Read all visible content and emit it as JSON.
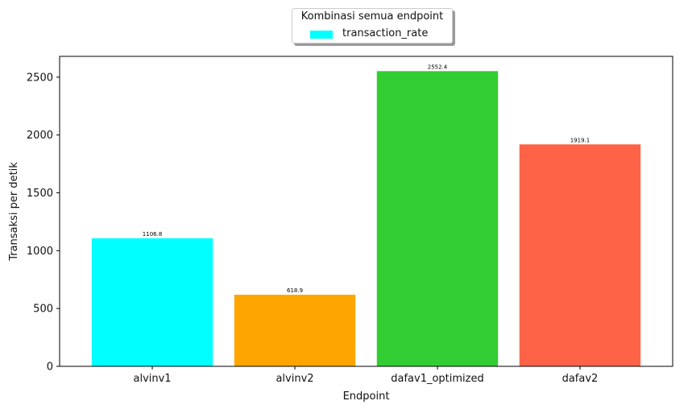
{
  "chart_data": {
    "type": "bar",
    "categories": [
      "alvinv1",
      "alvinv2",
      "dafav1_optimized",
      "dafav2"
    ],
    "values": [
      1106.8,
      618.9,
      2552.4,
      1919.1
    ],
    "data_labels": [
      "1106.8",
      "618.9",
      "2552.4",
      "1919.1"
    ],
    "colors": [
      "#00ffff",
      "#ffa500",
      "#32cd32",
      "#ff6347"
    ],
    "xlabel": "Endpoint",
    "ylabel": "Transaksi per detik",
    "ylim": [
      0,
      2680
    ],
    "yticks": [
      0,
      500,
      1000,
      1500,
      2000,
      2500
    ],
    "grid": false,
    "legend": {
      "title": "Kombinasi semua endpoint",
      "entries": [
        "transaction_rate"
      ],
      "placement": "top-center, above plot",
      "color": "#00ffff"
    }
  }
}
